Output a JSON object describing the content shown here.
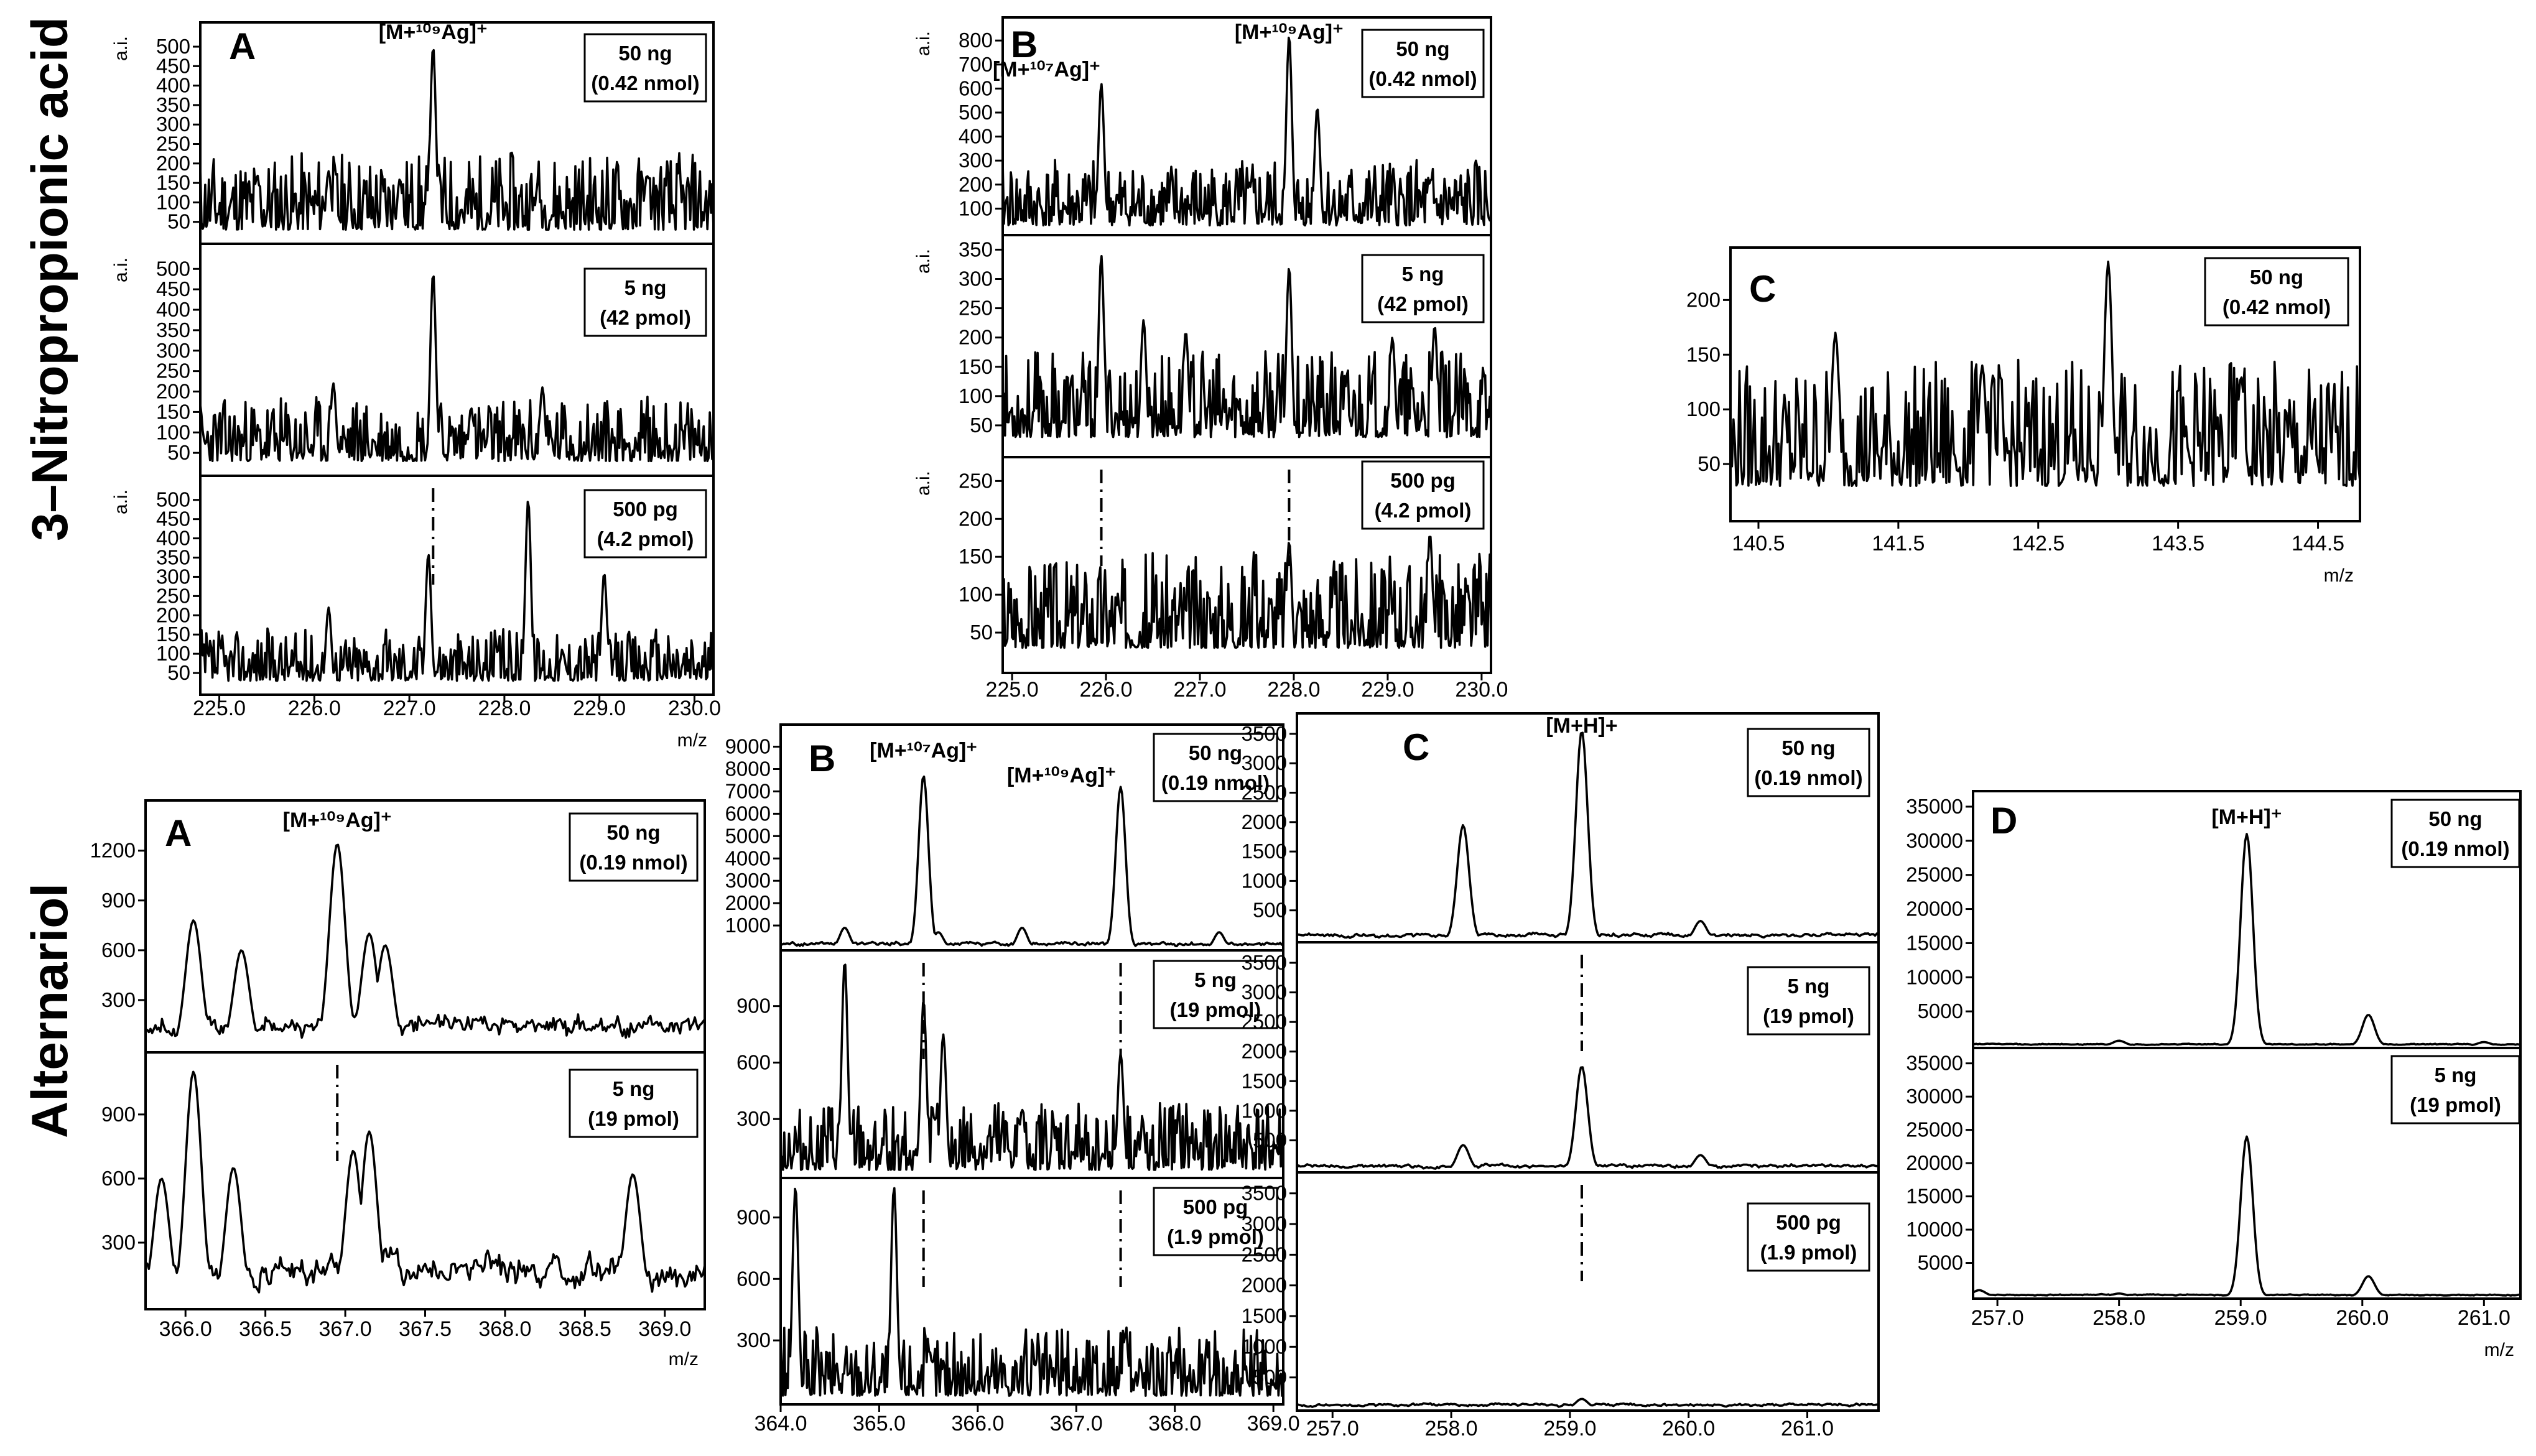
{
  "row_titles": [
    "3–Nitropropionic acid",
    "Alternariol"
  ],
  "chart_data": [
    {
      "id": "np-A",
      "type": "line",
      "group": "3–Nitropropionic acid",
      "letter": "A",
      "xlabel": "m/z",
      "ylabel": "a.i.",
      "xlim": [
        224.8,
        230.2
      ],
      "xticks": [
        "225.0",
        "226.0",
        "227.0",
        "228.0",
        "229.0",
        "230.0"
      ],
      "peak_labels": [
        {
          "text": "[M+¹⁰⁹Ag]⁺",
          "x": 227.25
        }
      ],
      "subplots": [
        {
          "amount": "50 ng",
          "moles": "(0.42 nmol)",
          "ylim": [
            0,
            540
          ],
          "yticks": [
            50,
            100,
            150,
            200,
            250,
            300,
            350,
            400,
            450,
            500
          ],
          "peaks": [
            [
              225.4,
              170
            ],
            [
              226.15,
              180
            ],
            [
              226.9,
              160
            ],
            [
              227.25,
              500
            ],
            [
              228.35,
              140
            ],
            [
              229.5,
              170
            ]
          ],
          "noise_seed": 11,
          "base": 95
        },
        {
          "amount": "5 ng",
          "moles": "(42 pmol)",
          "ylim": [
            0,
            540
          ],
          "yticks": [
            50,
            100,
            150,
            200,
            250,
            300,
            350,
            400,
            450,
            500
          ],
          "peaks": [
            [
              226.2,
              220
            ],
            [
              227.25,
              490
            ],
            [
              227.65,
              160
            ],
            [
              228.4,
              210
            ]
          ],
          "noise_seed": 23,
          "base": 75
        },
        {
          "amount": "500 pg",
          "moles": "(4.2 pmol)",
          "ylim": [
            0,
            540
          ],
          "yticks": [
            50,
            100,
            150,
            200,
            250,
            300,
            350,
            400,
            450,
            500
          ],
          "peaks": [
            [
              226.15,
              220
            ],
            [
              227.2,
              360
            ],
            [
              228.25,
              500
            ],
            [
              229.05,
              310
            ]
          ],
          "noise_seed": 37,
          "base": 65,
          "marker_x": 227.25
        }
      ]
    },
    {
      "id": "np-B",
      "type": "line",
      "group": "3–Nitropropionic acid",
      "letter": "B",
      "xlabel": "",
      "ylabel": "a.i.",
      "xlim": [
        224.9,
        230.1
      ],
      "xticks": [
        "225.0",
        "226.0",
        "227.0",
        "228.0",
        "229.0",
        "230.0"
      ],
      "peak_labels": [
        {
          "text": "[M+¹⁰⁷Ag]⁺",
          "x": 225.95
        },
        {
          "text": "[M+¹⁰⁹Ag]⁺",
          "x": 227.95
        }
      ],
      "subplots": [
        {
          "amount": "50 ng",
          "moles": "(0.42 nmol)",
          "ylim": [
            0,
            860
          ],
          "yticks": [
            100,
            200,
            300,
            400,
            500,
            600,
            700,
            800
          ],
          "peaks": [
            [
              225.95,
              620
            ],
            [
              227.95,
              820
            ],
            [
              228.25,
              520
            ]
          ],
          "noise_seed": 41,
          "base": 130
        },
        {
          "amount": "5 ng",
          "moles": "(42 pmol)",
          "ylim": [
            0,
            360
          ],
          "yticks": [
            50,
            100,
            150,
            200,
            250,
            300,
            350
          ],
          "peaks": [
            [
              225.95,
              340
            ],
            [
              226.4,
              230
            ],
            [
              226.85,
              210
            ],
            [
              227.95,
              320
            ],
            [
              229.05,
              200
            ],
            [
              229.5,
              220
            ]
          ],
          "noise_seed": 53,
          "base": 70
        },
        {
          "amount": "500 pg",
          "moles": "(4.2 pmol)",
          "ylim": [
            0,
            270
          ],
          "yticks": [
            50,
            100,
            150,
            200,
            250
          ],
          "peaks": [
            [
              227.95,
              170
            ],
            [
              229.45,
              180
            ]
          ],
          "noise_seed": 67,
          "base": 60,
          "marker_x": [
            225.95,
            227.95
          ]
        }
      ]
    },
    {
      "id": "np-C",
      "type": "line",
      "group": "3–Nitropropionic acid",
      "letter": "C",
      "xlabel": "m/z",
      "ylabel": "",
      "xlim": [
        140.3,
        144.8
      ],
      "xticks": [
        "140.5",
        "141.5",
        "142.5",
        "143.5",
        "144.5"
      ],
      "peak_labels": [],
      "subplots": [
        {
          "amount": "50 ng",
          "moles": "(0.42 nmol)",
          "ylim": [
            0,
            240
          ],
          "yticks": [
            50,
            100,
            150,
            200
          ],
          "peaks": [
            [
              141.05,
              170
            ],
            [
              142.1,
              140
            ],
            [
              143.0,
              235
            ],
            [
              143.95,
              130
            ]
          ],
          "noise_seed": 79,
          "base": 55
        }
      ]
    },
    {
      "id": "alt-A",
      "type": "line",
      "group": "Alternariol",
      "letter": "A",
      "xlabel": "m/z",
      "ylabel": "",
      "xlim": [
        365.75,
        369.25
      ],
      "xticks": [
        "366.0",
        "366.5",
        "367.0",
        "367.5",
        "368.0",
        "368.5",
        "369.0"
      ],
      "peak_labels": [
        {
          "text": "[M+¹⁰⁹Ag]⁺",
          "x": 366.95
        }
      ],
      "subplots": [
        {
          "amount": "50 ng",
          "moles": "(0.19 nmol)",
          "ylim": [
            0,
            1450
          ],
          "yticks": [
            300,
            600,
            900,
            1200
          ],
          "peaks": [
            [
              366.05,
              780
            ],
            [
              366.35,
              600
            ],
            [
              366.95,
              1240
            ],
            [
              367.15,
              700
            ],
            [
              367.25,
              630
            ]
          ],
          "noise_seed": 83,
          "base": 230,
          "smooth": true
        },
        {
          "amount": "5 ng",
          "moles": "(19 pmol)",
          "ylim": [
            0,
            1150
          ],
          "yticks": [
            300,
            600,
            900
          ],
          "peaks": [
            [
              365.85,
              600
            ],
            [
              366.05,
              1100
            ],
            [
              366.3,
              650
            ],
            [
              367.05,
              730
            ],
            [
              367.15,
              820
            ],
            [
              368.8,
              620
            ]
          ],
          "noise_seed": 97,
          "base": 270,
          "smooth": true,
          "marker_x": 366.95
        }
      ]
    },
    {
      "id": "alt-B",
      "type": "line",
      "group": "Alternariol",
      "letter": "B",
      "xlabel": "",
      "ylabel": "",
      "xlim": [
        364.0,
        369.1
      ],
      "xticks": [
        "364.0",
        "365.0",
        "366.0",
        "367.0",
        "368.0",
        "369.0"
      ],
      "peak_labels": [
        {
          "text": "[M+¹⁰⁷Ag]⁺",
          "x": 365.45
        },
        {
          "text": "[M+¹⁰⁹Ag]⁺",
          "x": 367.45
        }
      ],
      "subplots": [
        {
          "amount": "50 ng",
          "moles": "(0.19 nmol)",
          "ylim": [
            0,
            9600
          ],
          "yticks": [
            1000,
            2000,
            3000,
            4000,
            5000,
            6000,
            7000,
            8000,
            9000
          ],
          "peaks": [
            [
              364.65,
              900
            ],
            [
              365.45,
              7700
            ],
            [
              365.6,
              700
            ],
            [
              366.45,
              900
            ],
            [
              367.45,
              7200
            ],
            [
              368.45,
              700
            ]
          ],
          "noise_seed": 101,
          "base": 300,
          "smooth": true
        },
        {
          "amount": "5 ng",
          "moles": "(19 pmol)",
          "ylim": [
            0,
            1150
          ],
          "yticks": [
            300,
            600,
            900
          ],
          "peaks": [
            [
              364.65,
              1140
            ],
            [
              365.45,
              930
            ],
            [
              365.65,
              750
            ],
            [
              366.45,
              350
            ],
            [
              367.45,
              650
            ]
          ],
          "noise_seed": 113,
          "base": 170,
          "marker_x": [
            365.45,
            367.45
          ]
        },
        {
          "amount": "500 pg",
          "moles": "(1.9 pmol)",
          "ylim": [
            0,
            1050
          ],
          "yticks": [
            300,
            600,
            900
          ],
          "peaks": [
            [
              364.15,
              1050
            ],
            [
              365.15,
              1050
            ],
            [
              367.5,
              330
            ]
          ],
          "noise_seed": 127,
          "base": 160,
          "marker_x": [
            365.45,
            367.45
          ]
        }
      ]
    },
    {
      "id": "alt-C",
      "type": "line",
      "group": "Alternariol",
      "letter": "C",
      "xlabel": "",
      "ylabel": "",
      "xlim": [
        256.7,
        261.6
      ],
      "xticks": [
        "257.0",
        "258.0",
        "259.0",
        "260.0",
        "261.0"
      ],
      "peak_labels": [
        {
          "text": "[M+H]+",
          "x": 259.1
        }
      ],
      "subplots": [
        {
          "amount": "50 ng",
          "moles": "(0.19 nmol)",
          "ylim": [
            0,
            3700
          ],
          "yticks": [
            500,
            1000,
            1500,
            2000,
            2500,
            3000,
            3500
          ],
          "peaks": [
            [
              258.1,
              1950
            ],
            [
              259.1,
              3550
            ],
            [
              260.1,
              320
            ]
          ],
          "noise_seed": 131,
          "base": 120,
          "smooth": true
        },
        {
          "amount": "5 ng",
          "moles": "(19 pmol)",
          "ylim": [
            0,
            3700
          ],
          "yticks": [
            500,
            1000,
            1500,
            2000,
            2500,
            3000,
            3500
          ],
          "peaks": [
            [
              258.1,
              420
            ],
            [
              259.1,
              1750
            ],
            [
              260.1,
              250
            ]
          ],
          "noise_seed": 149,
          "base": 100,
          "smooth": true,
          "marker_x": 259.1
        },
        {
          "amount": "500 pg",
          "moles": "(1.9 pmol)",
          "ylim": [
            0,
            3700
          ],
          "yticks": [
            500,
            1000,
            1500,
            2000,
            2500,
            3000,
            3500
          ],
          "peaks": [
            [
              259.1,
              150
            ]
          ],
          "noise_seed": 151,
          "base": 80,
          "smooth": true,
          "marker_x": 259.1
        }
      ]
    },
    {
      "id": "alt-D",
      "type": "line",
      "group": "Alternariol",
      "letter": "D",
      "xlabel": "m/z",
      "ylabel": "",
      "xlim": [
        256.8,
        261.3
      ],
      "xticks": [
        "257.0",
        "258.0",
        "259.0",
        "260.0",
        "261.0"
      ],
      "peak_labels": [
        {
          "text": "[M+H]⁺",
          "x": 259.05
        }
      ],
      "subplots": [
        {
          "amount": "50 ng",
          "moles": "(0.19 nmol)",
          "ylim": [
            0,
            36000
          ],
          "yticks": [
            5000,
            10000,
            15000,
            20000,
            25000,
            30000,
            35000
          ],
          "peaks": [
            [
              258.0,
              700
            ],
            [
              259.05,
              31000
            ],
            [
              260.05,
              4500
            ],
            [
              261.0,
              500
            ]
          ],
          "noise_seed": 157,
          "base": 300,
          "smooth": true
        },
        {
          "amount": "5 ng",
          "moles": "(19 pmol)",
          "ylim": [
            0,
            36000
          ],
          "yticks": [
            5000,
            10000,
            15000,
            20000,
            25000,
            30000,
            35000
          ],
          "peaks": [
            [
              256.85,
              900
            ],
            [
              258.0,
              400
            ],
            [
              259.05,
              24000
            ],
            [
              260.05,
              3000
            ]
          ],
          "noise_seed": 163,
          "base": 300,
          "smooth": true
        }
      ]
    }
  ]
}
